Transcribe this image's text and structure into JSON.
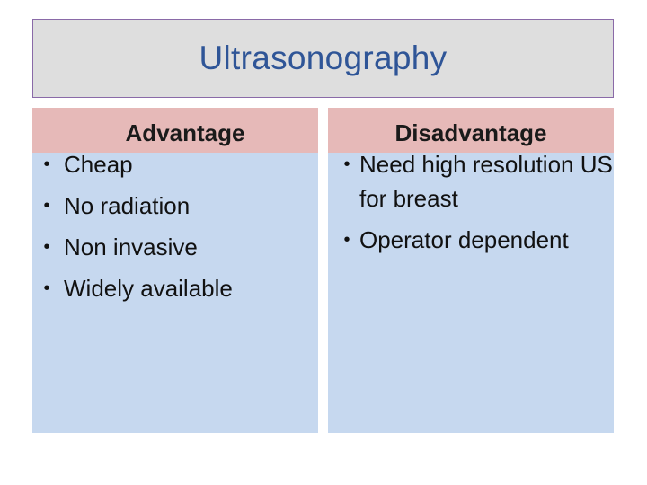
{
  "slide": {
    "title": "Ultrasonography"
  },
  "advantage": {
    "heading": "Advantage",
    "items": [
      "Cheap",
      "No radiation",
      "Non invasive",
      "Widely available"
    ]
  },
  "disadvantage": {
    "heading": "Disadvantage",
    "items": [
      "Need high resolution US for breast",
      "Operator dependent"
    ]
  },
  "colors": {
    "title_text": "#2f5597",
    "title_bg": "#dedede",
    "title_border": "#8a6aa8",
    "header_bg": "#e6b9b8",
    "column_bg": "#c6d8ef"
  }
}
